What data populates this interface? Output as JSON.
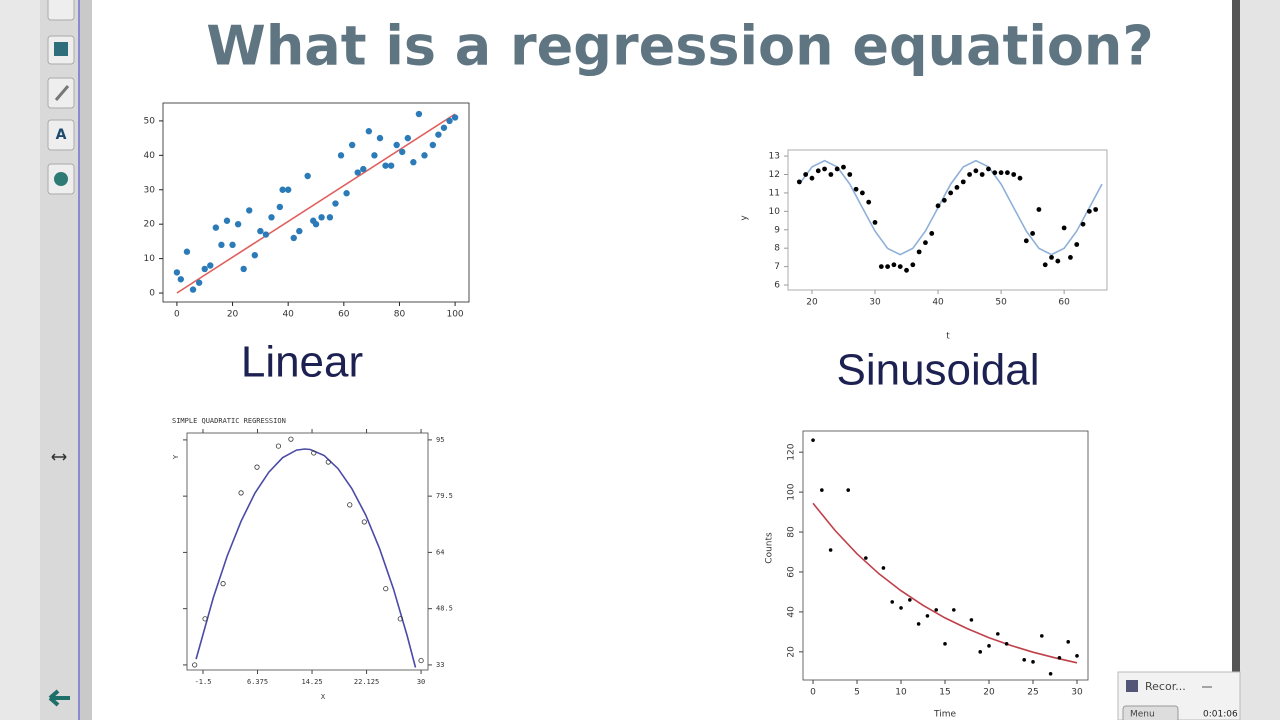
{
  "slide": {
    "title": "What is a regression equation?",
    "labels": [
      "Linear",
      "Sinusoidal"
    ]
  },
  "recorder": {
    "title": "Recor...",
    "menu": "Menu",
    "time": "0:01:06"
  },
  "chart_data": [
    {
      "type": "scatter",
      "xlim": [
        -5,
        105
      ],
      "ylim": [
        -2.6,
        55.2
      ],
      "xticks": [
        0,
        20,
        40,
        60,
        80,
        100
      ],
      "yticks": [
        0,
        10,
        20,
        30,
        40,
        50
      ],
      "points": {
        "marker": "dot",
        "color": "#2b7bb9",
        "x": [
          0,
          1.4,
          3.6,
          5.8,
          8,
          10,
          12,
          14,
          16,
          18,
          20,
          22,
          24,
          26,
          28,
          30,
          32,
          34,
          37,
          38,
          40,
          42,
          44,
          47,
          49,
          50,
          52,
          55,
          57,
          59,
          61,
          63,
          65,
          67,
          69,
          71,
          73,
          75,
          77,
          79,
          81,
          83,
          85,
          87,
          89,
          92,
          94,
          96,
          98,
          100
        ],
        "y": [
          6,
          4,
          12,
          1,
          3,
          7,
          8,
          19,
          14,
          21,
          14,
          20,
          7,
          24,
          11,
          18,
          17,
          22,
          25,
          30,
          30,
          16,
          18,
          34,
          21,
          20,
          22,
          22,
          26,
          40,
          29,
          43,
          35,
          36,
          47,
          40,
          45,
          37,
          37,
          43,
          41,
          45,
          38,
          52,
          40,
          43,
          46,
          48,
          50,
          51
        ]
      },
      "fit": {
        "color": "#e0605e",
        "x": [
          0,
          100
        ],
        "y": [
          0,
          52
        ]
      }
    },
    {
      "type": "scatter",
      "x_label": "t",
      "y_label": "y",
      "xlim": [
        16.2,
        66.8
      ],
      "ylim": [
        5.73,
        13.33
      ],
      "xticks": [
        20,
        30,
        40,
        50,
        60
      ],
      "yticks": [
        6,
        7,
        8,
        9,
        10,
        11,
        12,
        13
      ],
      "points": {
        "marker": "dot",
        "color": "#000000",
        "x": [
          18,
          19,
          20,
          21,
          22,
          23,
          24,
          25,
          26,
          27,
          28,
          29,
          30,
          31,
          32,
          33,
          34,
          35,
          36,
          37,
          38,
          39,
          40,
          41,
          42,
          43,
          44,
          45,
          46,
          47,
          48,
          49,
          50,
          51,
          52,
          53,
          54,
          55,
          56,
          57,
          58,
          59,
          60,
          61,
          62,
          63,
          64,
          65
        ],
        "y": [
          11.6,
          12.0,
          11.8,
          12.2,
          12.3,
          12.0,
          12.3,
          12.4,
          12.0,
          11.2,
          11.0,
          10.5,
          9.4,
          7.0,
          7.0,
          7.1,
          7.0,
          6.8,
          7.1,
          7.8,
          8.3,
          8.8,
          10.3,
          10.6,
          11.0,
          11.3,
          11.6,
          12.0,
          12.2,
          12.0,
          12.3,
          12.1,
          12.1,
          12.1,
          12.0,
          11.8,
          8.4,
          8.8,
          10.1,
          7.1,
          7.5,
          7.3,
          9.1,
          7.5,
          8.2,
          9.3,
          10.0,
          10.1
        ]
      },
      "fit": {
        "color": "#8fb0d8",
        "x": [
          18,
          20,
          22,
          24,
          26,
          28,
          30,
          32,
          34,
          36,
          38,
          40,
          42,
          44,
          46,
          48,
          50,
          52,
          54,
          56,
          58,
          60,
          62,
          64,
          66
        ],
        "y": [
          11.48,
          12.41,
          12.75,
          12.41,
          11.48,
          10.2,
          8.93,
          7.99,
          7.65,
          7.99,
          8.93,
          10.2,
          11.48,
          12.41,
          12.75,
          12.41,
          11.48,
          10.2,
          8.93,
          7.99,
          7.65,
          7.99,
          8.93,
          10.2,
          11.48
        ]
      }
    },
    {
      "type": "scatter",
      "title": "SIMPLE QUADRATIC REGRESSION",
      "x_label": "X",
      "y_label": "Y",
      "y_axis_side": "right",
      "ticks_all_sides": true,
      "xlim": [
        -3.81,
        31.0
      ],
      "ylim": [
        31.6,
        96.9
      ],
      "xticks": [
        -1.5,
        6.375,
        14.25,
        22.125,
        30
      ],
      "yticks": [
        33,
        48.5,
        64,
        79.5,
        95
      ],
      "points": {
        "marker": "circle",
        "color": "#333333",
        "x": [
          -2.7,
          -1.2,
          1.4,
          4,
          6.3,
          9.4,
          11.2,
          14.5,
          16.6,
          19.7,
          21.8,
          24.9,
          27,
          30
        ],
        "y": [
          33,
          45.7,
          55.4,
          80.4,
          87.5,
          93.3,
          95.2,
          91.4,
          88.9,
          77.1,
          72.4,
          54,
          45.7,
          34.2
        ]
      },
      "fit": {
        "color": "#4a4aa8",
        "x": [
          -2.5,
          0,
          2,
          4,
          6,
          8,
          10,
          12,
          13.2,
          14,
          16,
          18,
          20,
          22,
          24,
          26,
          28,
          29.2
        ],
        "y": [
          34.6,
          51.6,
          63.0,
          72.6,
          80.3,
          86.1,
          90.1,
          92.2,
          92.5,
          92.35,
          90.7,
          87.1,
          81.6,
          74.3,
          65.1,
          54.0,
          41.0,
          32.3
        ]
      }
    },
    {
      "type": "scatter",
      "x_label": "Time",
      "y_label": "Counts",
      "y_tick_labels_rotated": true,
      "xlim": [
        -1.14,
        31.25
      ],
      "ylim": [
        5.9,
        130.6
      ],
      "xticks": [
        0,
        5,
        10,
        15,
        20,
        25,
        30
      ],
      "yticks": [
        20,
        40,
        60,
        80,
        100,
        120
      ],
      "points": {
        "marker": "dot",
        "color": "#000000",
        "x": [
          0,
          1,
          2,
          4,
          6,
          8,
          9,
          10,
          11,
          12,
          13,
          14,
          15,
          16,
          18,
          19,
          20,
          21,
          22,
          24,
          25,
          26,
          27,
          28,
          29,
          30
        ],
        "y": [
          126,
          101,
          71,
          101,
          67,
          62,
          45,
          42,
          46,
          34,
          38,
          41,
          24,
          41,
          36,
          20,
          23,
          29,
          24,
          16,
          15,
          28,
          9,
          17,
          25,
          18
        ]
      },
      "fit": {
        "color": "#c0404a",
        "x": [
          0,
          2.5,
          5,
          7.5,
          10,
          12.5,
          15,
          17.5,
          20,
          22.5,
          25,
          27.5,
          30
        ],
        "y": [
          94.4,
          80.8,
          69.1,
          59.1,
          50.6,
          43.3,
          37.0,
          31.7,
          27.1,
          23.2,
          19.8,
          17.0,
          14.5
        ]
      }
    }
  ]
}
